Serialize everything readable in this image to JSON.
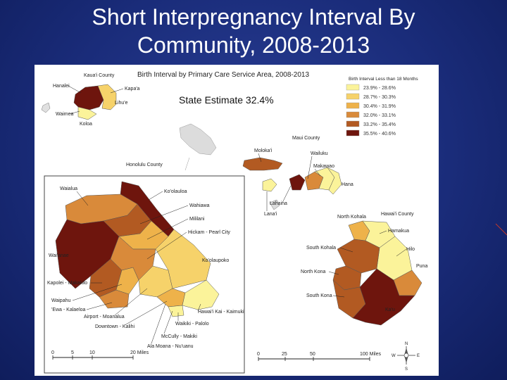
{
  "slide": {
    "title_line1": "Short Interpregnancy Interval By",
    "title_line2": "Community, 2008-2013"
  },
  "map": {
    "title": "Birth Interval by Primary Care Service Area, 2008-2013",
    "state_estimate": "State Estimate 32.4%",
    "legend": {
      "title": "Birth Interval Less than 18 Months",
      "classes": [
        {
          "label": "23.9% - 28.6%",
          "color": "#fbf39a"
        },
        {
          "label": "28.7% - 30.3%",
          "color": "#f6d26a"
        },
        {
          "label": "30.4% - 31.9%",
          "color": "#eeb24a"
        },
        {
          "label": "32.0% - 33.1%",
          "color": "#d98a3a"
        },
        {
          "label": "33.2% - 35.4%",
          "color": "#b25a22"
        },
        {
          "label": "35.5% - 40.6%",
          "color": "#6e150d"
        }
      ]
    },
    "county_labels": {
      "kauai": "Kaua'i County",
      "honolulu": "Honolulu County",
      "maui": "Maui County",
      "hawaii": "Hawai'i County"
    },
    "community_labels": {
      "hanalei": "Hanalei",
      "kapaa": "Kapa'a",
      "lihue": "Lihu'e",
      "waimea": "Waimea",
      "koloa": "Koloa",
      "molokai": "Moloka'i",
      "wailuku": "Wailuku",
      "makawao": "Makawao",
      "hana": "Hana",
      "lahaina": "Lahaina",
      "lanai": "Lana'i",
      "north_kohala": "North Kohala",
      "hamakua": "Hamakua",
      "hilo": "Hilo",
      "south_kohala": "South Kohala",
      "north_kona": "North Kona",
      "puna": "Puna",
      "south_kona": "South Kona",
      "kau": "Ka'u",
      "waialua": "Waialua",
      "koolauloa": "Ko'olauloa",
      "wahiawa": "Wahiawa",
      "mililani": "Mililani",
      "hickam": "Hickam - Pearl City",
      "waianae": "Wai'anae",
      "koolaupoko": "Ko'olaupoko",
      "kapolei": "Kapolei - Makakilo",
      "waipahu": "Waipahu",
      "ewa": "'Ewa - Kalaeloa",
      "airport": "Airport - Moanalua",
      "downtown": "Downtown - Kalihi",
      "hawaii_kai": "Hawai'i Kai - Kaimuki",
      "waikiki": "Waikiki - Palolo",
      "mccully": "McCully - Makiki",
      "ala_moana": "Ala Moana - Nu'uanu"
    },
    "scale_oahu": [
      "0",
      "5",
      "10",
      "20 Miles"
    ],
    "scale_state": [
      "0",
      "25",
      "50",
      "100 Miles"
    ],
    "compass": {
      "n": "N",
      "s": "S",
      "e": "E",
      "w": "W"
    }
  }
}
